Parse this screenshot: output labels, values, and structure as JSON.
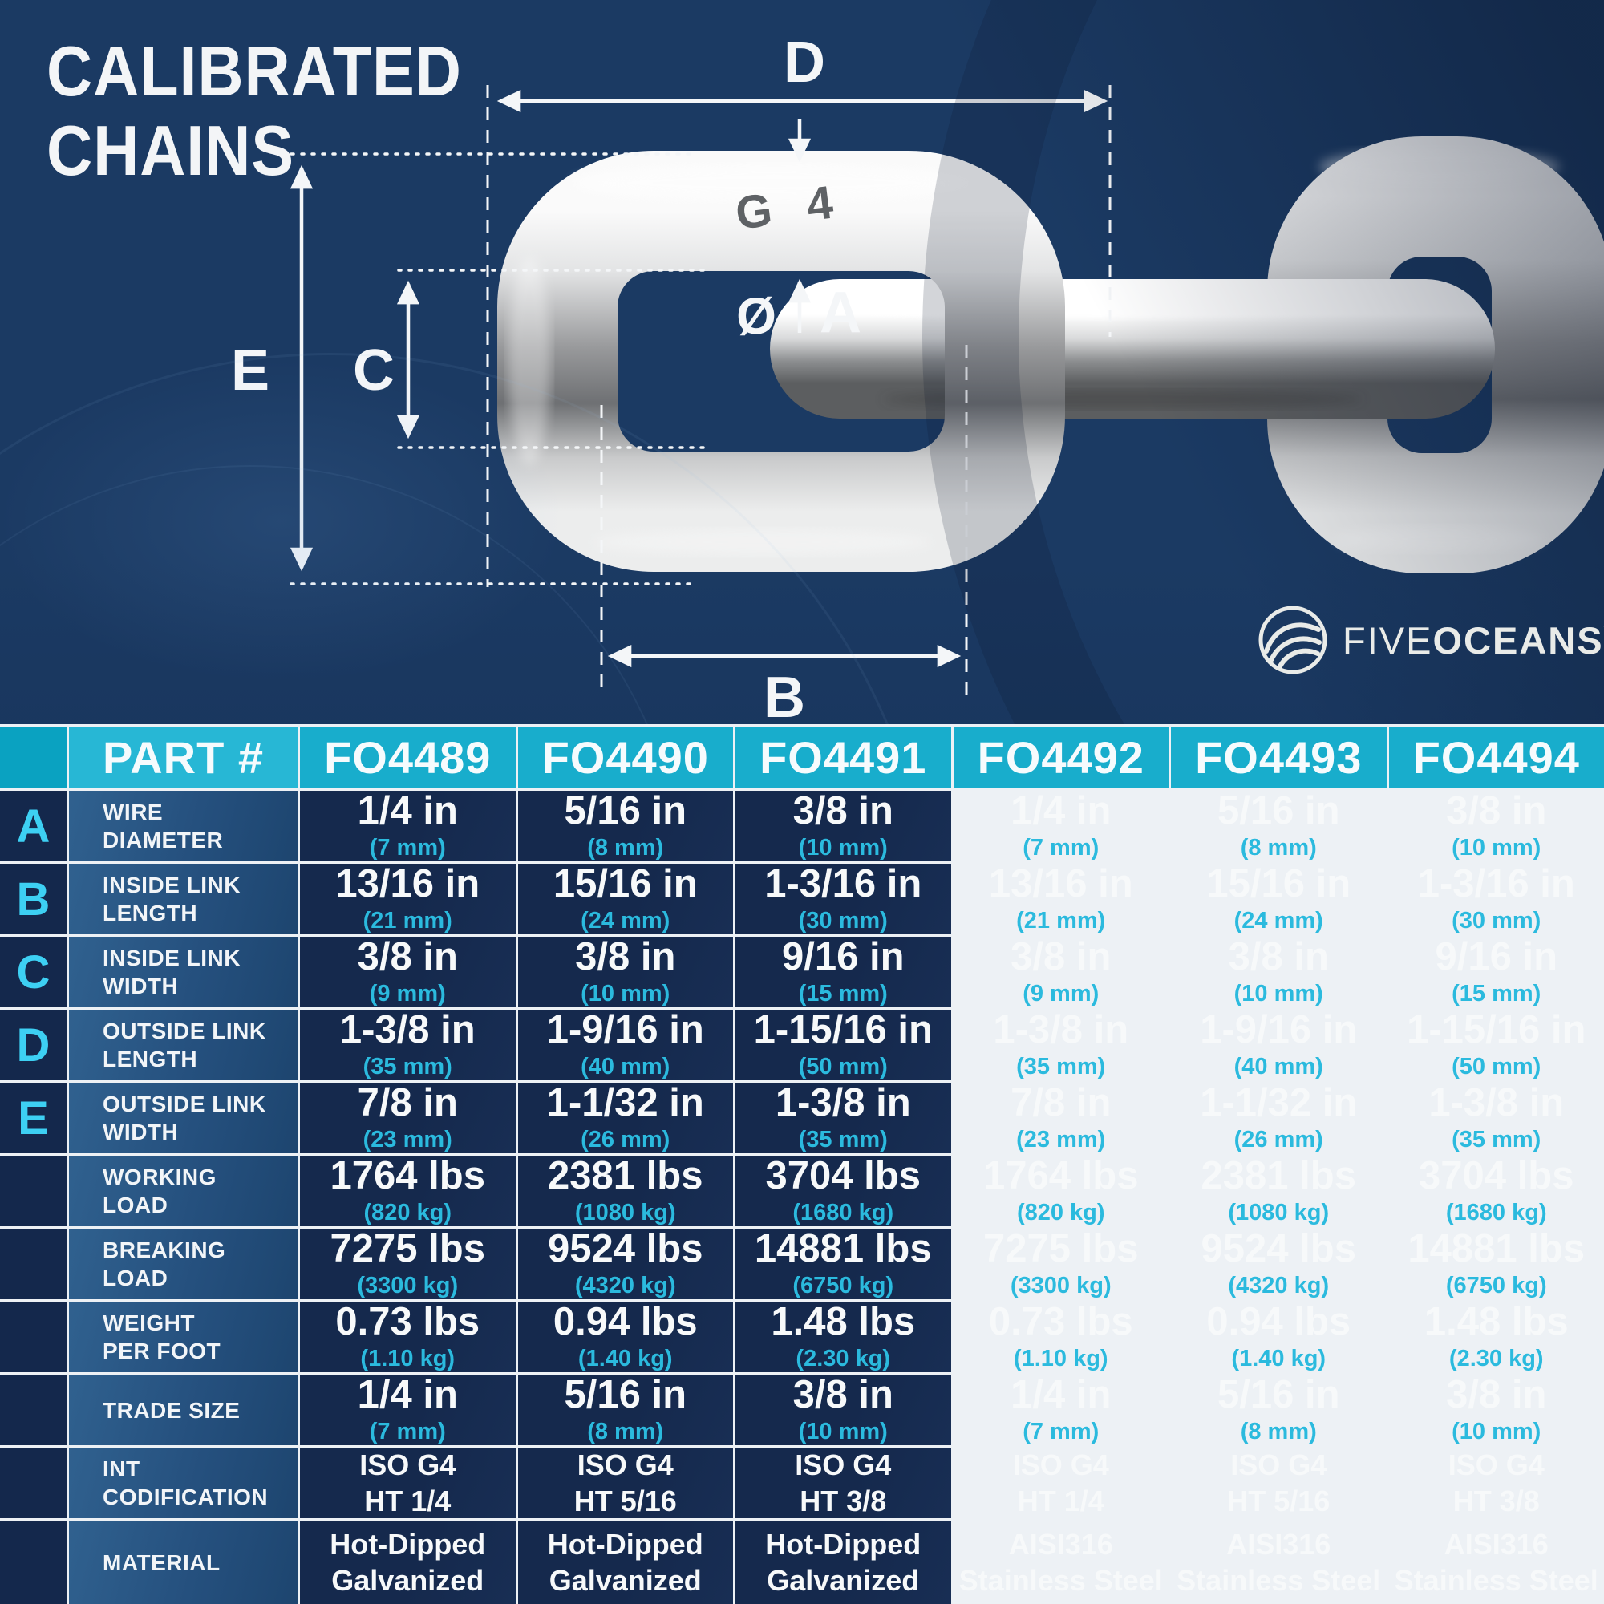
{
  "title": {
    "line1": "CALIBRATED",
    "line2": "CHAINS"
  },
  "diagram": {
    "labels": {
      "d": "D",
      "e": "E",
      "c": "C",
      "b": "B",
      "a": "A",
      "diameter_symbol": "Ø"
    },
    "stamp": "G 4"
  },
  "logo": {
    "brand_first": "FIVE",
    "brand_second": "OCEANS",
    "registered": "®"
  },
  "colors": {
    "background_navy": "#1b3a63",
    "table_cell_navy": "#15294d",
    "row_header_blue": "#2a5884",
    "header_teal": "#18adcc",
    "accent_cyan_letters": "#3dd0f3",
    "unit_cyan": "#2bbade",
    "gridline_white": "#edf1f5",
    "text_white": "#f6f8fa"
  },
  "table": {
    "part_header": "PART #",
    "columns": [
      "FO4489",
      "FO4490",
      "FO4491",
      "FO4492",
      "FO4493",
      "FO4494"
    ],
    "rows": [
      {
        "letter": "A",
        "label": "WIRE\nDIAMETER",
        "style": "measure",
        "cells": [
          [
            "1/4 in",
            "(7 mm)"
          ],
          [
            "5/16 in",
            "(8 mm)"
          ],
          [
            "3/8 in",
            "(10 mm)"
          ],
          [
            "1/4 in",
            "(7 mm)"
          ],
          [
            "5/16 in",
            "(8 mm)"
          ],
          [
            "3/8 in",
            "(10 mm)"
          ]
        ]
      },
      {
        "letter": "B",
        "label": "INSIDE LINK\nLENGTH",
        "style": "measure",
        "cells": [
          [
            "13/16 in",
            "(21 mm)"
          ],
          [
            "15/16 in",
            "(24 mm)"
          ],
          [
            "1-3/16 in",
            "(30 mm)"
          ],
          [
            "13/16 in",
            "(21 mm)"
          ],
          [
            "15/16 in",
            "(24 mm)"
          ],
          [
            "1-3/16 in",
            "(30 mm)"
          ]
        ]
      },
      {
        "letter": "C",
        "label": "INSIDE LINK\nWIDTH",
        "style": "measure",
        "cells": [
          [
            "3/8 in",
            "(9 mm)"
          ],
          [
            "3/8 in",
            "(10 mm)"
          ],
          [
            "9/16 in",
            "(15 mm)"
          ],
          [
            "3/8 in",
            "(9 mm)"
          ],
          [
            "3/8 in",
            "(10 mm)"
          ],
          [
            "9/16 in",
            "(15 mm)"
          ]
        ]
      },
      {
        "letter": "D",
        "label": "OUTSIDE LINK\nLENGTH",
        "style": "measure",
        "cells": [
          [
            "1-3/8 in",
            "(35 mm)"
          ],
          [
            "1-9/16 in",
            "(40 mm)"
          ],
          [
            "1-15/16 in",
            "(50 mm)"
          ],
          [
            "1-3/8 in",
            "(35 mm)"
          ],
          [
            "1-9/16 in",
            "(40 mm)"
          ],
          [
            "1-15/16 in",
            "(50 mm)"
          ]
        ]
      },
      {
        "letter": "E",
        "label": "OUTSIDE LINK\nWIDTH",
        "style": "measure",
        "cells": [
          [
            "7/8 in",
            "(23 mm)"
          ],
          [
            "1-1/32 in",
            "(26 mm)"
          ],
          [
            "1-3/8 in",
            "(35 mm)"
          ],
          [
            "7/8 in",
            "(23 mm)"
          ],
          [
            "1-1/32 in",
            "(26 mm)"
          ],
          [
            "1-3/8 in",
            "(35 mm)"
          ]
        ]
      },
      {
        "letter": "",
        "label": "WORKING\nLOAD",
        "style": "measure",
        "cells": [
          [
            "1764 lbs",
            "(820 kg)"
          ],
          [
            "2381 lbs",
            "(1080 kg)"
          ],
          [
            "3704 lbs",
            "(1680 kg)"
          ],
          [
            "1764 lbs",
            "(820 kg)"
          ],
          [
            "2381 lbs",
            "(1080 kg)"
          ],
          [
            "3704 lbs",
            "(1680 kg)"
          ]
        ]
      },
      {
        "letter": "",
        "label": "BREAKING\nLOAD",
        "style": "measure",
        "cells": [
          [
            "7275 lbs",
            "(3300 kg)"
          ],
          [
            "9524 lbs",
            "(4320 kg)"
          ],
          [
            "14881 lbs",
            "(6750 kg)"
          ],
          [
            "7275 lbs",
            "(3300 kg)"
          ],
          [
            "9524 lbs",
            "(4320 kg)"
          ],
          [
            "14881 lbs",
            "(6750 kg)"
          ]
        ]
      },
      {
        "letter": "",
        "label": "WEIGHT\nPER FOOT",
        "style": "measure",
        "cells": [
          [
            "0.73 lbs",
            "(1.10 kg)"
          ],
          [
            "0.94 lbs",
            "(1.40 kg)"
          ],
          [
            "1.48 lbs",
            "(2.30 kg)"
          ],
          [
            "0.73 lbs",
            "(1.10 kg)"
          ],
          [
            "0.94 lbs",
            "(1.40 kg)"
          ],
          [
            "1.48 lbs",
            "(2.30 kg)"
          ]
        ]
      },
      {
        "letter": "",
        "label": "TRADE SIZE",
        "style": "measure",
        "cells": [
          [
            "1/4 in",
            "(7 mm)"
          ],
          [
            "5/16 in",
            "(8 mm)"
          ],
          [
            "3/8 in",
            "(10 mm)"
          ],
          [
            "1/4 in",
            "(7 mm)"
          ],
          [
            "5/16 in",
            "(8 mm)"
          ],
          [
            "3/8 in",
            "(10 mm)"
          ]
        ]
      },
      {
        "letter": "",
        "label": "INT\nCODIFICATION",
        "style": "plain",
        "cells": [
          [
            "ISO G4",
            "HT 1/4"
          ],
          [
            "ISO G4",
            "HT 5/16"
          ],
          [
            "ISO G4",
            "HT 3/8"
          ],
          [
            "ISO G4",
            "HT 1/4"
          ],
          [
            "ISO G4",
            "HT 5/16"
          ],
          [
            "ISO G4",
            "HT 3/8"
          ]
        ]
      },
      {
        "letter": "",
        "label": "MATERIAL",
        "style": "plain",
        "cells": [
          [
            "Hot-Dipped",
            "Galvanized"
          ],
          [
            "Hot-Dipped",
            "Galvanized"
          ],
          [
            "Hot-Dipped",
            "Galvanized"
          ],
          [
            "AISI316",
            "Stainless Steel"
          ],
          [
            "AISI316",
            "Stainless Steel"
          ],
          [
            "AISI316",
            "Stainless Steel"
          ]
        ]
      }
    ]
  }
}
